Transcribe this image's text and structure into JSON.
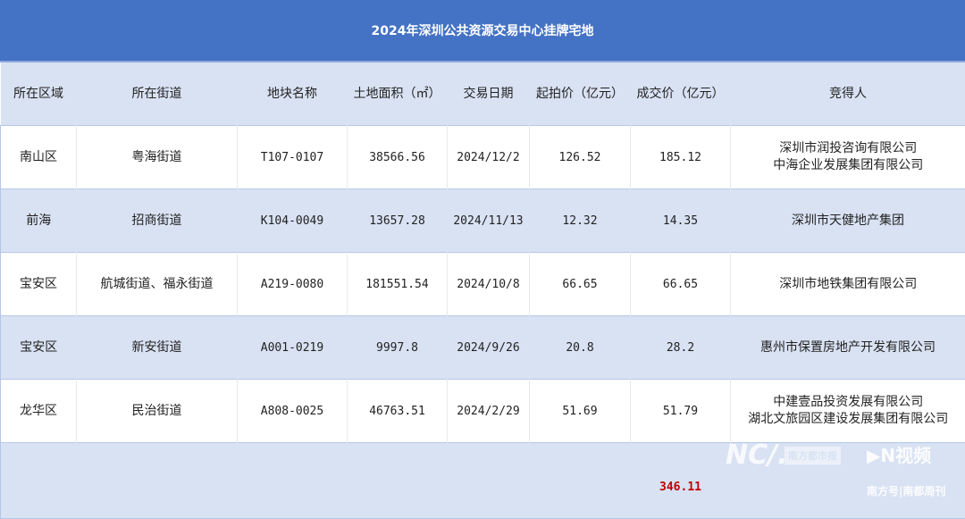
{
  "title": "2024年深圳公共资源交易中心挂牌宅地",
  "columns": [
    "所在区域",
    "所在街道",
    "地块名称",
    "土地面积（㎡）",
    "交易日期",
    "起拍价（亿元）",
    "成交价（亿元）",
    "竞得人"
  ],
  "rows": [
    {
      "district": "南山区",
      "street": "粤海街道",
      "plot": "T107-0107",
      "area": "38566.56",
      "date": "2024/12/2",
      "start": "126.52",
      "deal": "185.12",
      "winner": [
        "深圳市润投咨询有限公司",
        "中海企业发展集团有限公司"
      ]
    },
    {
      "district": "前海",
      "street": "招商街道",
      "plot": "K104-0049",
      "area": "13657.28",
      "date": "2024/11/13",
      "start": "12.32",
      "deal": "14.35",
      "winner": [
        "深圳市天健地产集团"
      ]
    },
    {
      "district": "宝安区",
      "street": "航城街道、福永街道",
      "plot": "A219-0080",
      "area": "181551.54",
      "date": "2024/10/8",
      "start": "66.65",
      "deal": "66.65",
      "winner": [
        "深圳市地铁集团有限公司"
      ]
    },
    {
      "district": "宝安区",
      "street": "新安街道",
      "plot": "A001-0219",
      "area": "9997.8",
      "date": "2024/9/26",
      "start": "20.8",
      "deal": "28.2",
      "winner": [
        "惠州市保置房地产开发有限公司"
      ]
    },
    {
      "district": "龙华区",
      "street": "民治街道",
      "plot": "A808-0025",
      "area": "46763.51",
      "date": "2024/2/29",
      "start": "51.69",
      "deal": "51.79",
      "winner": [
        "中建壹品投资发展有限公司",
        "湖北文旅园区建设发展集团有限公司"
      ]
    }
  ],
  "total_deal": "346.11",
  "watermarks": {
    "nd": "NC/.",
    "paper": "南方都市报",
    "video": "N视频",
    "footer": "南方号|南都周刊"
  },
  "colors": {
    "header": "#4472c4",
    "band": "#d9e2f3",
    "total": "#c00000"
  }
}
